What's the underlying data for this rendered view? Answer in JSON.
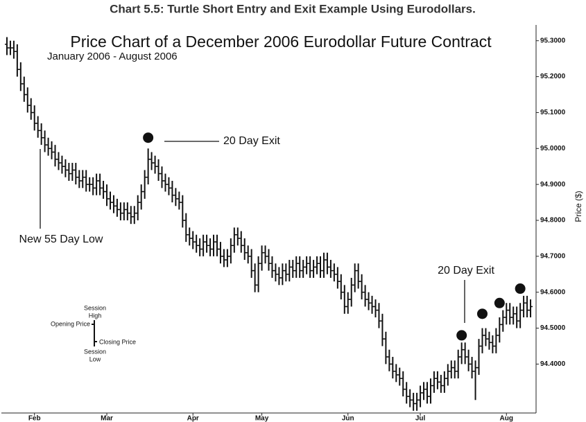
{
  "caption": "Chart 5.5: Turtle Short Entry and Exit Example Using Eurodollars.",
  "chart_data": {
    "type": "ohlc",
    "title": "Price Chart of a December 2006 Eurodollar Future Contract",
    "subtitle": "January 2006 - August 2006",
    "y_label": "Price ($)",
    "color": "#111111",
    "xlim": [
      -1,
      153
    ],
    "xticks": [
      {
        "value": 8,
        "label": "Feb"
      },
      {
        "value": 29,
        "label": "Mar"
      },
      {
        "value": 54,
        "label": "Apr"
      },
      {
        "value": 74,
        "label": "May"
      },
      {
        "value": 99,
        "label": "Jun"
      },
      {
        "value": 120,
        "label": "Jul"
      },
      {
        "value": 145,
        "label": "Aug"
      }
    ],
    "ylim": [
      94.26,
      95.34
    ],
    "yticks": [
      {
        "value": 94.4,
        "label": "94.4000"
      },
      {
        "value": 94.5,
        "label": "94.5000"
      },
      {
        "value": 94.6,
        "label": "94.6000"
      },
      {
        "value": 94.7,
        "label": "94.7000"
      },
      {
        "value": 94.8,
        "label": "94.8000"
      },
      {
        "value": 94.9,
        "label": "94.9000"
      },
      {
        "value": 95.0,
        "label": "95.0000"
      },
      {
        "value": 95.1,
        "label": "95.1000"
      },
      {
        "value": 95.2,
        "label": "95.2000"
      },
      {
        "value": 95.3,
        "label": "95.3000"
      }
    ],
    "open": [
      95.29,
      95.28,
      95.28,
      95.27,
      95.22,
      95.18,
      95.15,
      95.12,
      95.1,
      95.07,
      95.05,
      95.03,
      95.01,
      95.0,
      94.99,
      94.97,
      94.96,
      94.95,
      94.94,
      94.93,
      94.94,
      94.92,
      94.91,
      94.92,
      94.9,
      94.9,
      94.89,
      94.91,
      94.89,
      94.88,
      94.86,
      94.85,
      94.84,
      94.83,
      94.82,
      94.83,
      94.82,
      94.81,
      94.82,
      94.85,
      94.88,
      94.92,
      94.97,
      94.96,
      94.95,
      94.93,
      94.91,
      94.9,
      94.89,
      94.87,
      94.86,
      94.85,
      94.8,
      94.76,
      94.75,
      94.74,
      94.73,
      94.72,
      94.74,
      94.73,
      94.72,
      94.74,
      94.72,
      94.7,
      94.69,
      94.7,
      94.73,
      94.76,
      94.75,
      94.73,
      94.71,
      94.7,
      94.66,
      94.62,
      94.68,
      94.71,
      94.7,
      94.68,
      94.66,
      94.65,
      94.64,
      94.66,
      94.65,
      94.67,
      94.66,
      94.68,
      94.66,
      94.67,
      94.68,
      94.66,
      94.67,
      94.68,
      94.66,
      94.69,
      94.67,
      94.66,
      94.65,
      94.63,
      94.6,
      94.56,
      94.58,
      94.62,
      94.66,
      94.63,
      94.6,
      94.58,
      94.57,
      94.56,
      94.55,
      94.52,
      94.47,
      94.42,
      94.4,
      94.38,
      94.37,
      94.36,
      94.33,
      94.31,
      94.3,
      94.29,
      94.3,
      94.32,
      94.33,
      94.31,
      94.34,
      94.36,
      94.35,
      94.34,
      94.36,
      94.38,
      94.39,
      94.38,
      94.42,
      94.44,
      94.42,
      94.4,
      94.38,
      94.39,
      94.45,
      94.48,
      94.47,
      94.46,
      94.45,
      94.48,
      94.51,
      94.53,
      94.55,
      94.53,
      94.54,
      94.52,
      94.55,
      94.57,
      94.55
    ],
    "close": [
      95.28,
      95.28,
      95.27,
      95.22,
      95.18,
      95.15,
      95.12,
      95.1,
      95.07,
      95.05,
      95.03,
      95.01,
      95.0,
      94.99,
      94.97,
      94.96,
      94.95,
      94.94,
      94.93,
      94.94,
      94.92,
      94.91,
      94.92,
      94.9,
      94.9,
      94.89,
      94.91,
      94.89,
      94.88,
      94.86,
      94.85,
      94.84,
      94.83,
      94.82,
      94.83,
      94.82,
      94.81,
      94.82,
      94.85,
      94.88,
      94.92,
      94.97,
      94.96,
      94.95,
      94.93,
      94.91,
      94.9,
      94.89,
      94.87,
      94.86,
      94.85,
      94.8,
      94.76,
      94.75,
      94.74,
      94.73,
      94.72,
      94.74,
      94.73,
      94.72,
      94.74,
      94.72,
      94.7,
      94.69,
      94.7,
      94.73,
      94.76,
      94.75,
      94.73,
      94.71,
      94.7,
      94.66,
      94.62,
      94.68,
      94.71,
      94.7,
      94.68,
      94.66,
      94.65,
      94.64,
      94.66,
      94.65,
      94.67,
      94.66,
      94.68,
      94.66,
      94.67,
      94.68,
      94.66,
      94.67,
      94.68,
      94.66,
      94.69,
      94.67,
      94.66,
      94.65,
      94.63,
      94.6,
      94.56,
      94.58,
      94.62,
      94.66,
      94.63,
      94.6,
      94.58,
      94.57,
      94.56,
      94.55,
      94.52,
      94.47,
      94.42,
      94.4,
      94.38,
      94.37,
      94.36,
      94.33,
      94.31,
      94.3,
      94.29,
      94.3,
      94.32,
      94.33,
      94.31,
      94.34,
      94.36,
      94.35,
      94.34,
      94.36,
      94.38,
      94.39,
      94.38,
      94.42,
      94.44,
      94.42,
      94.4,
      94.38,
      94.39,
      94.45,
      94.48,
      94.47,
      94.46,
      94.45,
      94.48,
      94.51,
      94.53,
      94.55,
      94.53,
      94.54,
      94.52,
      94.55,
      94.57,
      94.55,
      94.56
    ],
    "high": [
      95.31,
      95.3,
      95.3,
      95.29,
      95.24,
      95.2,
      95.17,
      95.14,
      95.12,
      95.09,
      95.07,
      95.05,
      95.03,
      95.02,
      95.01,
      94.99,
      94.98,
      94.97,
      94.96,
      94.96,
      94.96,
      94.94,
      94.94,
      94.94,
      94.92,
      94.92,
      94.93,
      94.93,
      94.91,
      94.9,
      94.88,
      94.87,
      94.86,
      94.85,
      94.85,
      94.85,
      94.84,
      94.84,
      94.87,
      94.9,
      94.94,
      95.0,
      94.99,
      94.98,
      94.97,
      94.95,
      94.93,
      94.92,
      94.91,
      94.89,
      94.88,
      94.87,
      94.82,
      94.78,
      94.77,
      94.76,
      94.75,
      94.76,
      94.76,
      94.75,
      94.76,
      94.76,
      94.74,
      94.72,
      94.72,
      94.75,
      94.78,
      94.78,
      94.77,
      94.75,
      94.73,
      94.72,
      94.68,
      94.7,
      94.73,
      94.73,
      94.72,
      94.7,
      94.68,
      94.67,
      94.68,
      94.68,
      94.69,
      94.69,
      94.7,
      94.7,
      94.69,
      94.7,
      94.7,
      94.69,
      94.7,
      94.7,
      94.71,
      94.71,
      94.69,
      94.68,
      94.67,
      94.65,
      94.62,
      94.6,
      94.64,
      94.68,
      94.68,
      94.65,
      94.62,
      94.6,
      94.59,
      94.58,
      94.57,
      94.54,
      94.49,
      94.44,
      94.42,
      94.4,
      94.39,
      94.38,
      94.35,
      94.33,
      94.32,
      94.32,
      94.34,
      94.35,
      94.35,
      94.36,
      94.38,
      94.38,
      94.37,
      94.38,
      94.4,
      94.41,
      94.41,
      94.44,
      94.46,
      94.46,
      94.44,
      94.42,
      94.41,
      94.47,
      94.5,
      94.5,
      94.49,
      94.48,
      94.5,
      94.53,
      94.55,
      94.57,
      94.57,
      94.56,
      94.56,
      94.57,
      94.59,
      94.59,
      94.58
    ],
    "low": [
      95.26,
      95.26,
      95.25,
      95.2,
      95.16,
      95.13,
      95.1,
      95.08,
      95.05,
      95.03,
      95.01,
      94.99,
      94.98,
      94.97,
      94.95,
      94.94,
      94.93,
      94.92,
      94.91,
      94.91,
      94.9,
      94.89,
      94.89,
      94.88,
      94.88,
      94.87,
      94.87,
      94.87,
      94.86,
      94.84,
      94.83,
      94.82,
      94.81,
      94.8,
      94.8,
      94.8,
      94.79,
      94.79,
      94.8,
      94.83,
      94.86,
      94.9,
      94.94,
      94.93,
      94.91,
      94.89,
      94.88,
      94.87,
      94.85,
      94.84,
      94.83,
      94.78,
      94.74,
      94.73,
      94.72,
      94.71,
      94.7,
      94.7,
      94.71,
      94.7,
      94.7,
      94.7,
      94.68,
      94.67,
      94.67,
      94.68,
      94.71,
      94.73,
      94.71,
      94.69,
      94.68,
      94.64,
      94.6,
      94.6,
      94.66,
      94.68,
      94.66,
      94.64,
      94.63,
      94.62,
      94.62,
      94.63,
      94.63,
      94.64,
      94.64,
      94.64,
      94.64,
      94.65,
      94.64,
      94.64,
      94.65,
      94.64,
      94.64,
      94.65,
      94.64,
      94.63,
      94.61,
      94.58,
      94.54,
      94.54,
      94.56,
      94.6,
      94.61,
      94.58,
      94.56,
      94.55,
      94.54,
      94.53,
      94.5,
      94.45,
      94.4,
      94.38,
      94.36,
      94.35,
      94.34,
      94.31,
      94.29,
      94.28,
      94.27,
      94.27,
      94.28,
      94.3,
      94.29,
      94.29,
      94.32,
      94.33,
      94.32,
      94.32,
      94.34,
      94.36,
      94.36,
      94.36,
      94.4,
      94.4,
      94.38,
      94.36,
      94.3,
      94.37,
      94.43,
      94.45,
      94.44,
      94.43,
      94.43,
      94.46,
      94.49,
      94.51,
      94.51,
      94.51,
      94.5,
      94.5,
      94.53,
      94.53,
      94.53
    ],
    "exit_markers": {
      "x": [
        41,
        132,
        138,
        143,
        149
      ],
      "values": [
        95.03,
        94.48,
        94.54,
        94.57,
        94.61
      ]
    },
    "annotations": [
      "20 Day Exit",
      "New 55 Day Low",
      "20 Day Exit"
    ],
    "legend_example": {
      "high": [
        "Session",
        "High"
      ],
      "open": "Opening Price",
      "close": "Closing Price",
      "low": [
        "Session",
        "Low"
      ]
    }
  }
}
